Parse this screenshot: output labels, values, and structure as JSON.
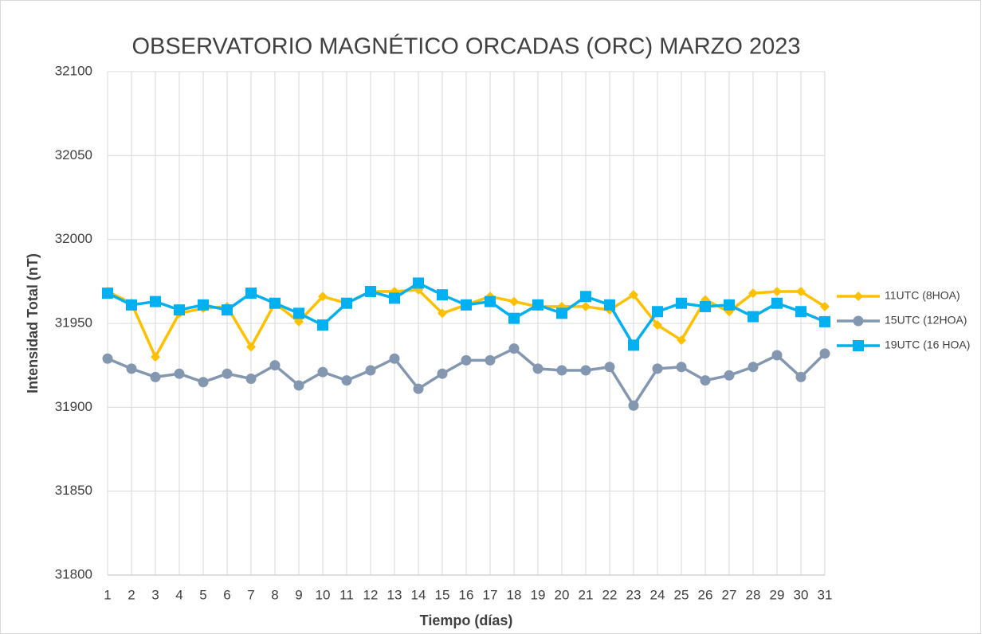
{
  "chart_data": {
    "type": "line",
    "title": "OBSERVATORIO MAGNÉTICO ORCADAS (ORC) MARZO 2023",
    "x_label": "Tiempo (días)",
    "y_label": "Intensidad Total (nT)",
    "categories": [
      "1",
      "2",
      "3",
      "4",
      "5",
      "6",
      "7",
      "8",
      "9",
      "10",
      "11",
      "12",
      "13",
      "14",
      "15",
      "16",
      "17",
      "18",
      "19",
      "20",
      "21",
      "22",
      "23",
      "24",
      "25",
      "26",
      "27",
      "28",
      "29",
      "30",
      "31"
    ],
    "series": [
      {
        "name": "11UTC (8HOA)",
        "color": "#FFC000",
        "marker": "diamond",
        "values": [
          31969,
          31962,
          31930,
          31956,
          31959,
          31960,
          31936,
          31962,
          31951,
          31966,
          31962,
          31969,
          31969,
          31970,
          31956,
          31961,
          31966,
          31963,
          31960,
          31960,
          31960,
          31958,
          31967,
          31949,
          31940,
          31964,
          31957,
          31968,
          31969,
          31969,
          31960
        ]
      },
      {
        "name": "15UTC (12HOA)",
        "color": "#8497B0",
        "marker": "circle",
        "values": [
          31929,
          31923,
          31918,
          31920,
          31915,
          31920,
          31917,
          31925,
          31913,
          31921,
          31916,
          31922,
          31929,
          31911,
          31920,
          31928,
          31928,
          31935,
          31923,
          31922,
          31922,
          31924,
          31901,
          31923,
          31924,
          31916,
          31919,
          31924,
          31931,
          31918,
          31932
        ]
      },
      {
        "name": "19UTC (16 HOA)",
        "color": "#00B0F0",
        "marker": "square",
        "values": [
          31968,
          31961,
          31963,
          31958,
          31961,
          31958,
          31968,
          31962,
          31956,
          31949,
          31962,
          31969,
          31965,
          31974,
          31967,
          31961,
          31963,
          31953,
          31961,
          31956,
          31966,
          31961,
          31937,
          31957,
          31962,
          31960,
          31961,
          31954,
          31962,
          31957,
          31951
        ]
      }
    ],
    "ylim": [
      31800,
      32100
    ],
    "yticks": [
      31800,
      31850,
      31900,
      31950,
      32000,
      32050,
      32100
    ],
    "grid": true,
    "legend": "right"
  }
}
